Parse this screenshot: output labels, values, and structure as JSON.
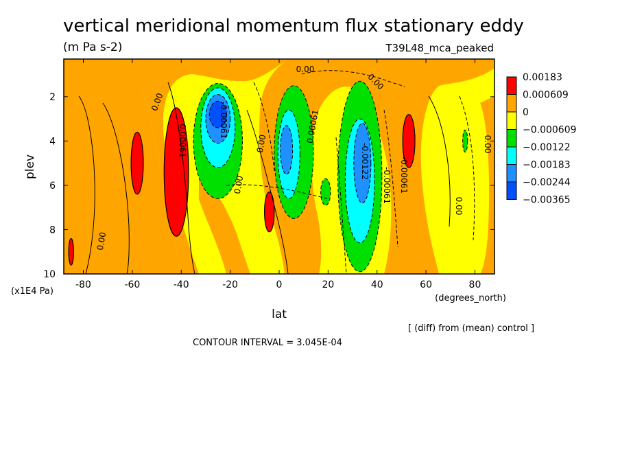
{
  "chart_data": {
    "type": "heatmap",
    "title": "vertical meridional momentum flux stationary eddy",
    "units": "(m Pa s-2)",
    "run_label": "T39L48_mca_peaked",
    "xlabel": "lat",
    "x_units": "(degrees_north)",
    "ylabel": "plev",
    "y_units": "(x1E4 Pa)",
    "xlim": [
      -88,
      88
    ],
    "ylim": [
      10,
      0.3
    ],
    "x_ticks": [
      "-80",
      "-60",
      "-40",
      "-20",
      "0",
      "20",
      "40",
      "60",
      "80"
    ],
    "y_ticks": [
      "2",
      "4",
      "6",
      "8",
      "10"
    ],
    "contour_interval_text": "CONTOUR INTERVAL = 3.045E-04",
    "comparison_text": "[ (diff) from (mean) control ]",
    "legend_levels": [
      "0.00183",
      "0.000609",
      "0",
      "−0.000609",
      "−0.00122",
      "−0.00183",
      "−0.00244",
      "−0.00365"
    ],
    "legend_colors": [
      "#ff0000",
      "#ffa500",
      "#ffff00",
      "#00e000",
      "#00ffff",
      "#1e90ff",
      "#0050ff"
    ],
    "background_color": "#ffff00",
    "contour_labels": [
      "0.00",
      "0.00",
      "0.00",
      "0.00",
      "0.00",
      "0.00",
      "0.00",
      "0.00",
      "-0.00061",
      "0.00061",
      "0.00061",
      "-0.00061",
      "-0.00122",
      "-0.00061"
    ],
    "features": [
      {
        "kind": "neg",
        "level": 1,
        "lat": -25,
        "p": 4.0,
        "w": 10,
        "h": 2.6
      },
      {
        "kind": "neg",
        "level": 2,
        "lat": -25,
        "p": 3.4,
        "w": 7,
        "h": 1.8
      },
      {
        "kind": "neg",
        "level": 3,
        "lat": -25,
        "p": 3.0,
        "w": 5,
        "h": 1.1
      },
      {
        "kind": "neg",
        "level": 4,
        "lat": -25,
        "p": 2.8,
        "w": 3.5,
        "h": 0.6
      },
      {
        "kind": "neg",
        "level": 1,
        "lat": 6,
        "p": 4.5,
        "w": 8,
        "h": 3.0
      },
      {
        "kind": "neg",
        "level": 2,
        "lat": 4,
        "p": 4.6,
        "w": 4.5,
        "h": 2.0
      },
      {
        "kind": "neg",
        "level": 3,
        "lat": 3,
        "p": 4.4,
        "w": 2.5,
        "h": 1.1
      },
      {
        "kind": "neg",
        "level": 1,
        "lat": 33,
        "p": 5.6,
        "w": 9,
        "h": 4.3
      },
      {
        "kind": "neg",
        "level": 2,
        "lat": 33,
        "p": 5.8,
        "w": 6,
        "h": 2.8
      },
      {
        "kind": "neg",
        "level": 3,
        "lat": 34,
        "p": 5.0,
        "w": 3.5,
        "h": 1.8
      },
      {
        "kind": "neg",
        "level": 1,
        "lat": 19,
        "p": 6.3,
        "w": 2,
        "h": 0.6
      },
      {
        "kind": "neg",
        "level": 1,
        "lat": 76,
        "p": 4.0,
        "w": 1,
        "h": 0.5
      },
      {
        "kind": "pos",
        "level": 1,
        "lat": -42,
        "p": 5.4,
        "w": 5,
        "h": 2.9
      },
      {
        "kind": "pos",
        "level": 1,
        "lat": -58,
        "p": 5.0,
        "w": 2.5,
        "h": 1.4
      },
      {
        "kind": "pos",
        "level": 1,
        "lat": 53,
        "p": 4.0,
        "w": 2.5,
        "h": 1.2
      },
      {
        "kind": "pos",
        "level": 1,
        "lat": -4,
        "p": 7.2,
        "w": 2,
        "h": 0.9
      },
      {
        "kind": "pos",
        "level": 1,
        "lat": -85,
        "p": 9.0,
        "w": 1,
        "h": 0.6
      }
    ]
  }
}
